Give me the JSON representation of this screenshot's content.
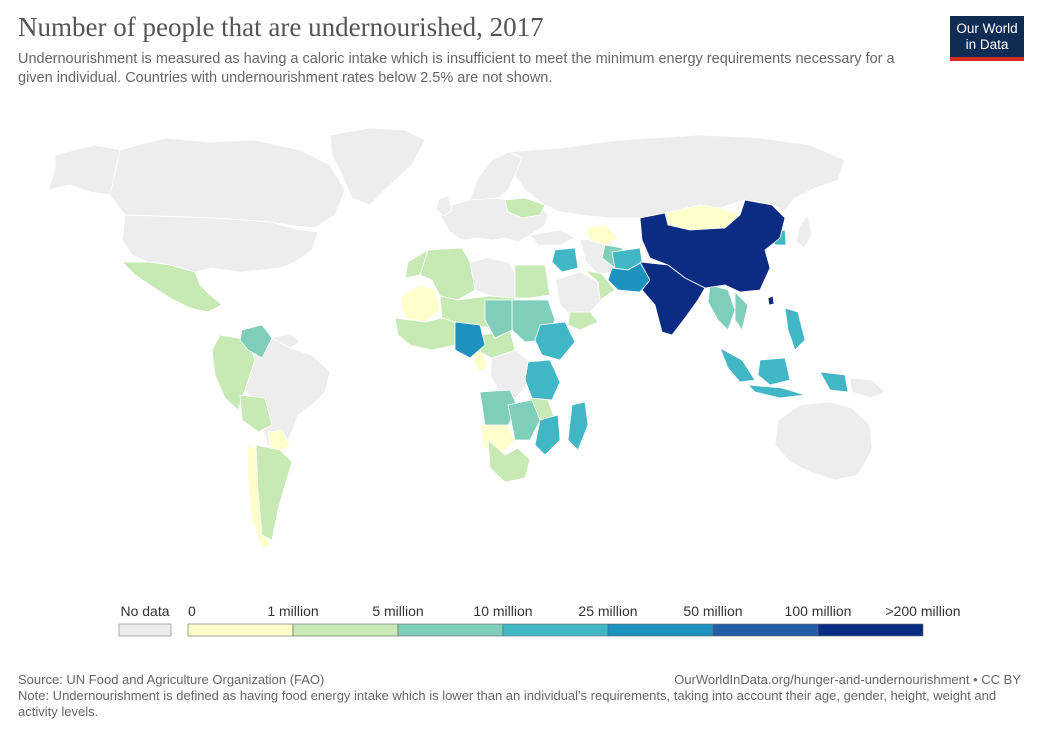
{
  "header": {
    "title": "Number of people that are undernourished, 2017",
    "subtitle": "Undernourishment is measured as having a caloric intake which is insufficient to meet the minimum energy requirements necessary for a given individual. Countries with undernourishment rates below 2.5% are not shown."
  },
  "logo": {
    "line1": "Our World",
    "line2": "in Data"
  },
  "legend": {
    "no_data_label": "No data",
    "no_data_color": "#ededed",
    "bins": [
      {
        "from": "0",
        "to": "1 million",
        "color": "#ffffcc"
      },
      {
        "from": "1 million",
        "to": "5 million",
        "color": "#c7e9b4"
      },
      {
        "from": "5 million",
        "to": "10 million",
        "color": "#7fcdbb"
      },
      {
        "from": "10 million",
        "to": "25 million",
        "color": "#41b6c4"
      },
      {
        "from": "25 million",
        "to": "50 million",
        "color": "#1d91c0"
      },
      {
        "from": "50 million",
        "to": "100 million",
        "color": "#225ea8"
      },
      {
        "from": "100 million",
        "to": ">200 million",
        "color": "#0c2c84"
      }
    ],
    "ticks": [
      "0",
      "1 million",
      "5 million",
      "10 million",
      "25 million",
      "50 million",
      "100 million",
      ">200 million"
    ]
  },
  "footer": {
    "source": "Source: UN Food and Agriculture Organization (FAO)",
    "url": "OurWorldInData.org/hunger-and-undernourishment • CC BY",
    "note": "Note: Undernourishment is defined as having food energy intake which is lower than an individual's requirements, taking into account their age, gender, height, weight and activity levels."
  }
}
